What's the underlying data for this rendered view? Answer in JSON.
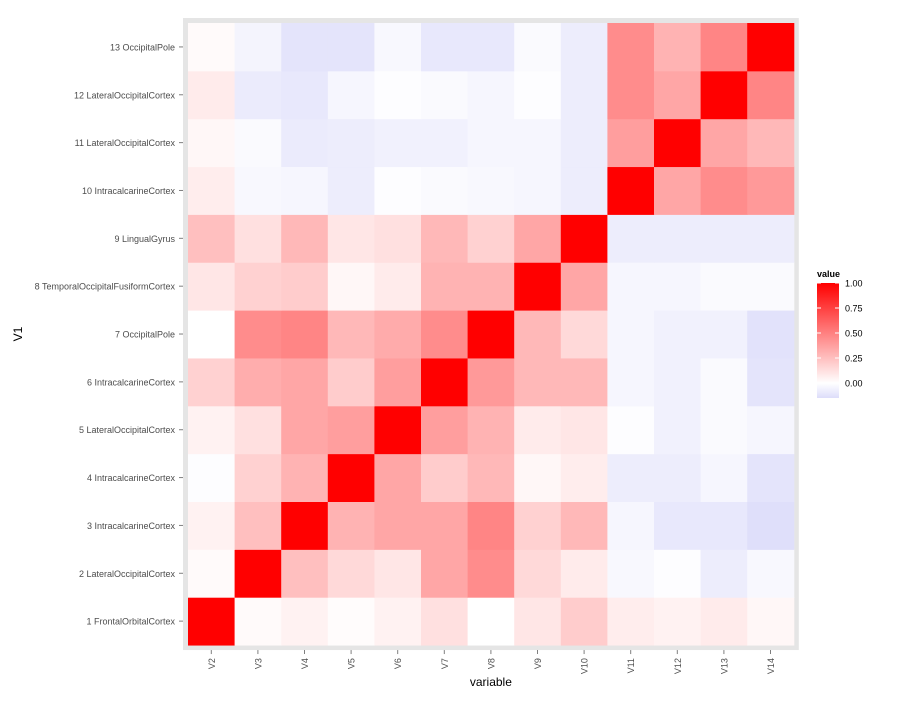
{
  "chart_data": {
    "type": "heatmap",
    "xlabel": "variable",
    "ylabel": "V1",
    "x_categories": [
      "V2",
      "V3",
      "V4",
      "V5",
      "V6",
      "V7",
      "V8",
      "V9",
      "V10",
      "V11",
      "V12",
      "V13",
      "V14"
    ],
    "y_categories": [
      "1 FrontalOrbitalCortex",
      "2 LateralOccipitalCortex",
      "3 IntracalcarineCortex",
      "4 IntracalcarineCortex",
      "5 LateralOccipitalCortex",
      "6 IntracalcarineCortex",
      "7 OccipitalPole",
      "8 TemporalOccipitalFusiformCortex",
      "9 LingualGyrus",
      "10 IntracalcarineCortex",
      "11 LateralOccipitalCortex",
      "12 LateralOccipitalCortex",
      "13 OccipitalPole"
    ],
    "values": [
      [
        1.0,
        0.02,
        0.05,
        0.01,
        0.05,
        0.12,
        0.0,
        0.1,
        0.2,
        0.07,
        0.05,
        0.08,
        0.03
      ],
      [
        0.02,
        1.0,
        0.25,
        0.15,
        0.1,
        0.35,
        0.45,
        0.15,
        0.08,
        -0.03,
        -0.01,
        -0.08,
        -0.03
      ],
      [
        0.05,
        0.25,
        1.0,
        0.3,
        0.35,
        0.35,
        0.48,
        0.18,
        0.28,
        -0.04,
        -0.1,
        -0.1,
        -0.14
      ],
      [
        -0.01,
        0.18,
        0.3,
        1.0,
        0.35,
        0.2,
        0.28,
        0.03,
        0.07,
        -0.08,
        -0.08,
        -0.04,
        -0.12
      ],
      [
        0.05,
        0.12,
        0.35,
        0.38,
        1.0,
        0.38,
        0.3,
        0.08,
        0.1,
        -0.01,
        -0.06,
        -0.02,
        -0.04
      ],
      [
        0.18,
        0.32,
        0.35,
        0.2,
        0.38,
        1.0,
        0.4,
        0.28,
        0.28,
        -0.04,
        -0.06,
        -0.02,
        -0.12
      ],
      [
        0.0,
        0.45,
        0.48,
        0.28,
        0.33,
        0.45,
        1.0,
        0.28,
        0.15,
        -0.04,
        -0.06,
        -0.06,
        -0.13
      ],
      [
        0.1,
        0.18,
        0.2,
        0.03,
        0.08,
        0.3,
        0.3,
        1.0,
        0.35,
        -0.04,
        -0.04,
        -0.02,
        -0.02
      ],
      [
        0.25,
        0.12,
        0.28,
        0.1,
        0.12,
        0.28,
        0.18,
        0.35,
        1.0,
        -0.08,
        -0.08,
        -0.08,
        -0.08
      ],
      [
        0.07,
        -0.03,
        -0.04,
        -0.08,
        -0.01,
        -0.02,
        -0.03,
        -0.04,
        -0.08,
        1.0,
        0.35,
        0.45,
        0.4
      ],
      [
        0.03,
        -0.02,
        -0.09,
        -0.08,
        -0.06,
        -0.06,
        -0.04,
        -0.04,
        -0.08,
        0.38,
        1.0,
        0.35,
        0.28
      ],
      [
        0.08,
        -0.09,
        -0.1,
        -0.04,
        -0.01,
        -0.02,
        -0.04,
        -0.01,
        -0.08,
        0.45,
        0.35,
        1.0,
        0.48
      ],
      [
        0.02,
        -0.05,
        -0.12,
        -0.12,
        -0.03,
        -0.1,
        -0.1,
        -0.02,
        -0.08,
        0.45,
        0.3,
        0.48,
        1.0
      ]
    ],
    "color_scale": {
      "low": "#ddddfa",
      "mid": "#ffffff",
      "high": "#ff0000",
      "domain": [
        -0.15,
        0,
        1
      ]
    },
    "legend": {
      "title": "value",
      "placement": "right",
      "ticks": [
        1.0,
        0.75,
        0.5,
        0.25,
        0.0
      ],
      "tick_labels": [
        "1.00",
        "0.75",
        "0.50",
        "0.25",
        "0.00"
      ]
    },
    "grid": false,
    "panel_background": "#e5e5e5"
  }
}
